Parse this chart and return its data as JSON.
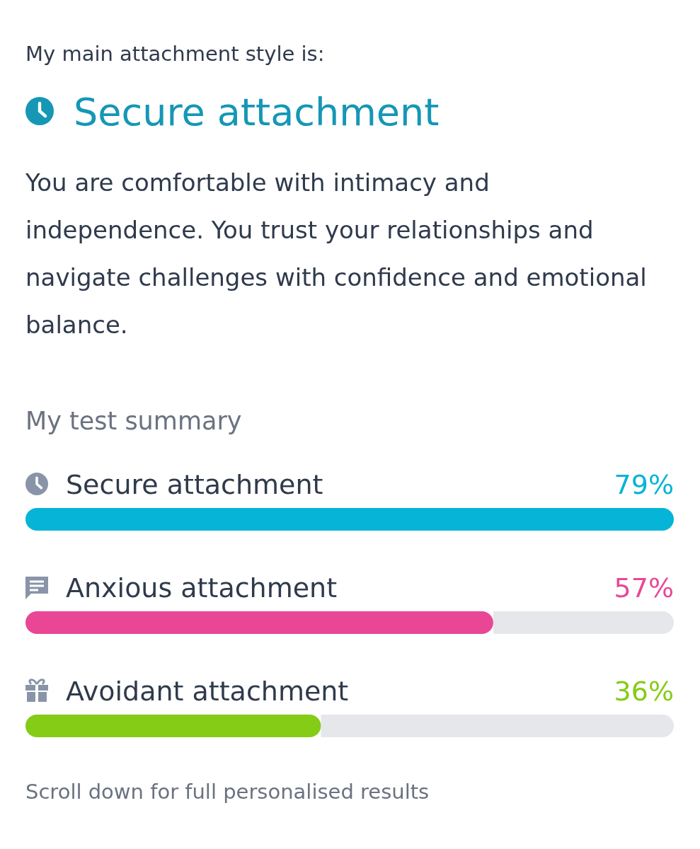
{
  "chart_data": {
    "type": "bar",
    "orientation": "horizontal",
    "subtitle": "My main attachment style is:",
    "title": "Secure attachment",
    "annotations": [
      "You are comfortable with intimacy and independence. You trust your relationships and navigate challenges with confidence and emotional balance.",
      "My test summary",
      "Scroll down for full personalised results"
    ],
    "categories": [
      "Secure attachment",
      "Anxious attachment",
      "Avoidant attachment"
    ],
    "values": [
      79,
      57,
      36
    ],
    "colors": [
      "#05b4d6",
      "#e94796",
      "#84cc16"
    ],
    "value_labels": [
      "79%",
      "57%",
      "36%"
    ],
    "xlim": [
      0,
      79
    ],
    "tick_labels": false
  }
}
